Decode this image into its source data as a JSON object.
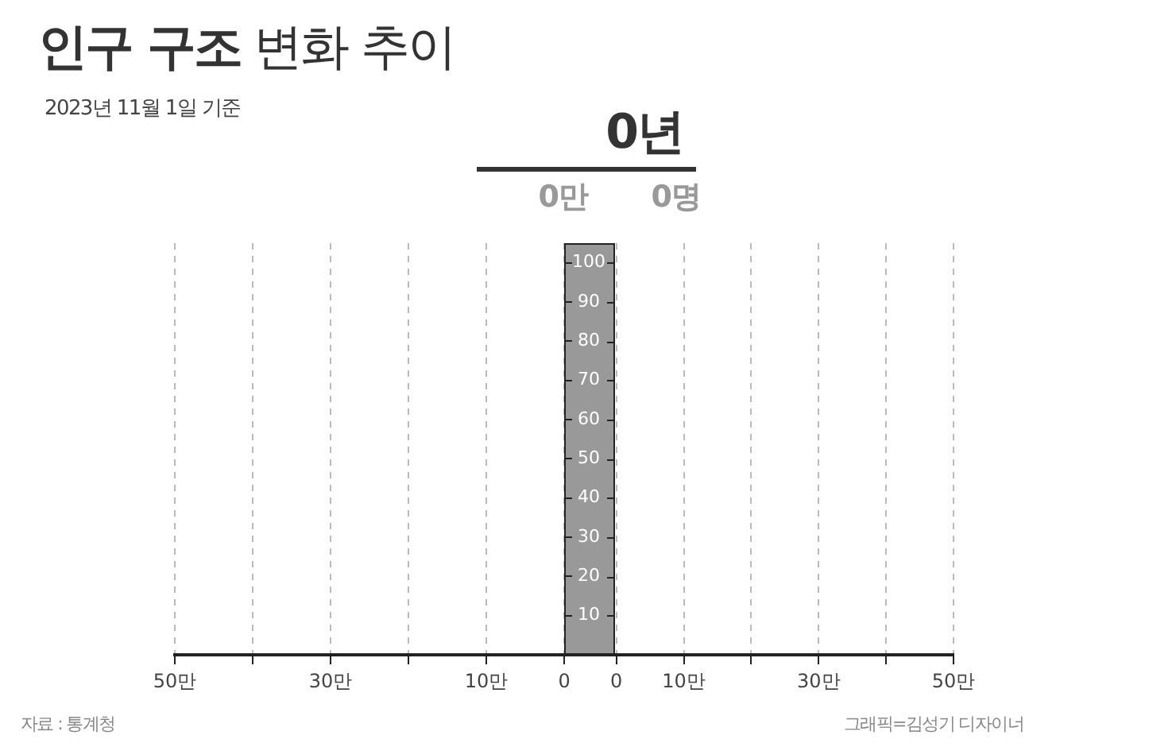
{
  "chart_data": [
    {
      "type": "bar",
      "title": "인구 구조 변화 추이",
      "subtitle": "2023년 11월 1일 기준",
      "annotations": [
        "0년",
        "0만",
        "0명",
        "자료 : 통계청",
        "그래픽=김성기 디자이너"
      ],
      "xlim": [
        50,
        0
      ],
      "xticks": [
        {
          "value": 50,
          "label": "50만"
        },
        {
          "value": 40,
          "label": null
        },
        {
          "value": 30,
          "label": "30만"
        },
        {
          "value": 20,
          "label": null
        },
        {
          "value": 10,
          "label": "10만"
        },
        0
      ],
      "ylim": [
        0,
        105
      ],
      "yticks": [
        10,
        20,
        30,
        40,
        50,
        60,
        70,
        80,
        90,
        100
      ],
      "grid": "x"
    },
    {
      "type": "bar",
      "xlim": [
        0,
        50
      ],
      "xticks": [
        0,
        {
          "value": 10,
          "label": "10만"
        },
        {
          "value": 20,
          "label": null
        },
        {
          "value": 30,
          "label": "30만"
        },
        {
          "value": 40,
          "label": null
        },
        {
          "value": 50,
          "label": "50만"
        }
      ],
      "ylim": [
        0,
        105
      ],
      "tick_labels": "x",
      "grid": "x"
    }
  ]
}
